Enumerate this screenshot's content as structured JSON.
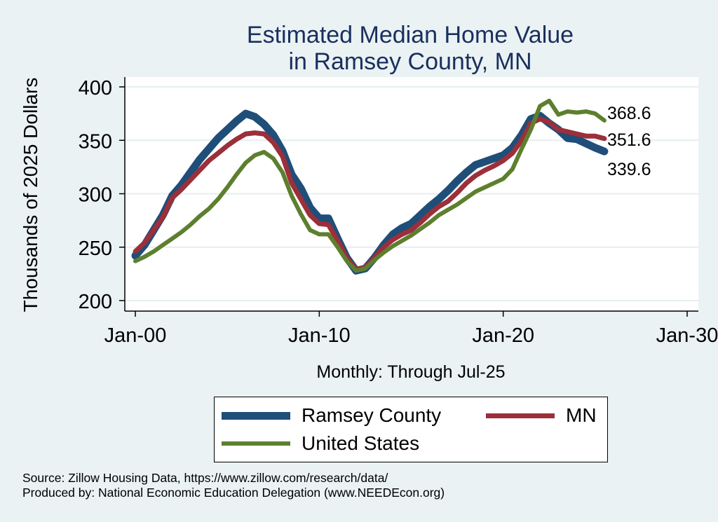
{
  "title_line1": "Estimated Median Home Value",
  "title_line2": "in Ramsey County, MN",
  "footer_line1": "Source: Zillow Housing Data, https://www.zillow.com/research/data/",
  "footer_line2": "Produced by: National Economic Education Delegation (www.NEEDEcon.org)",
  "chart_data": {
    "type": "line",
    "title": "Estimated Median Home Value in Ramsey County, MN",
    "xlabel": "Monthly: Through Jul-25",
    "ylabel": "Thousands of 2025 Dollars",
    "xlim": [
      "Jan-00",
      "Jan-30"
    ],
    "ylim": [
      200,
      400
    ],
    "x_ticks": [
      "Jan-00",
      "Jan-10",
      "Jan-20",
      "Jan-30"
    ],
    "y_ticks": [
      200,
      250,
      300,
      350,
      400
    ],
    "grid": true,
    "legend_position": "bottom",
    "series": [
      {
        "name": "Ramsey County",
        "color": "#1f4e79",
        "end_label": "339.6",
        "points": [
          [
            "Jan-00",
            242
          ],
          [
            "Jul-00",
            252
          ],
          [
            "Jan-01",
            266
          ],
          [
            "Jul-01",
            280
          ],
          [
            "Jan-02",
            298
          ],
          [
            "Jul-02",
            308
          ],
          [
            "Jan-03",
            320
          ],
          [
            "Jul-03",
            332
          ],
          [
            "Jan-04",
            342
          ],
          [
            "Jul-04",
            352
          ],
          [
            "Jan-05",
            360
          ],
          [
            "Jul-05",
            368
          ],
          [
            "Jan-06",
            375
          ],
          [
            "Jul-06",
            372
          ],
          [
            "Jan-07",
            365
          ],
          [
            "Jul-07",
            355
          ],
          [
            "Jan-08",
            340
          ],
          [
            "Jul-08",
            318
          ],
          [
            "Jan-09",
            305
          ],
          [
            "Jul-09",
            287
          ],
          [
            "Jan-10",
            277
          ],
          [
            "Jul-10",
            277
          ],
          [
            "Jan-11",
            258
          ],
          [
            "Jul-11",
            240
          ],
          [
            "Jan-12",
            228
          ],
          [
            "Jul-12",
            230
          ],
          [
            "Jan-13",
            240
          ],
          [
            "Jul-13",
            252
          ],
          [
            "Jan-14",
            262
          ],
          [
            "Jul-14",
            268
          ],
          [
            "Jan-15",
            272
          ],
          [
            "Jul-15",
            280
          ],
          [
            "Jan-16",
            288
          ],
          [
            "Jul-16",
            295
          ],
          [
            "Jan-17",
            303
          ],
          [
            "Jul-17",
            312
          ],
          [
            "Jan-18",
            320
          ],
          [
            "Jul-18",
            327
          ],
          [
            "Jan-19",
            330
          ],
          [
            "Jul-19",
            333
          ],
          [
            "Jan-20",
            336
          ],
          [
            "Jul-20",
            343
          ],
          [
            "Jan-21",
            355
          ],
          [
            "Jul-21",
            370
          ],
          [
            "Jan-22",
            373
          ],
          [
            "Jul-22",
            366
          ],
          [
            "Jan-23",
            360
          ],
          [
            "Jul-23",
            352
          ],
          [
            "Jan-24",
            351
          ],
          [
            "Jul-24",
            347
          ],
          [
            "Jan-25",
            343
          ],
          [
            "Jul-25",
            339.6
          ]
        ]
      },
      {
        "name": "MN",
        "color": "#9b2f3a",
        "end_label": "351.6",
        "points": [
          [
            "Jan-00",
            246
          ],
          [
            "Jul-00",
            254
          ],
          [
            "Jan-01",
            266
          ],
          [
            "Jul-01",
            278
          ],
          [
            "Jan-02",
            296
          ],
          [
            "Jul-02",
            304
          ],
          [
            "Jan-03",
            313
          ],
          [
            "Jul-03",
            322
          ],
          [
            "Jan-04",
            331
          ],
          [
            "Jul-04",
            338
          ],
          [
            "Jan-05",
            345
          ],
          [
            "Jul-05",
            351
          ],
          [
            "Jan-06",
            356
          ],
          [
            "Jul-06",
            357
          ],
          [
            "Jan-07",
            356
          ],
          [
            "Jul-07",
            348
          ],
          [
            "Jan-08",
            335
          ],
          [
            "Jul-08",
            310
          ],
          [
            "Jan-09",
            295
          ],
          [
            "Jul-09",
            280
          ],
          [
            "Jan-10",
            272
          ],
          [
            "Jul-10",
            271
          ],
          [
            "Jan-11",
            256
          ],
          [
            "Jul-11",
            240
          ],
          [
            "Jan-12",
            229
          ],
          [
            "Jul-12",
            231
          ],
          [
            "Jan-13",
            240
          ],
          [
            "Jul-13",
            250
          ],
          [
            "Jan-14",
            257
          ],
          [
            "Jul-14",
            262
          ],
          [
            "Jan-15",
            266
          ],
          [
            "Jul-15",
            273
          ],
          [
            "Jan-16",
            281
          ],
          [
            "Jul-16",
            288
          ],
          [
            "Jan-17",
            293
          ],
          [
            "Jul-17",
            301
          ],
          [
            "Jan-18",
            310
          ],
          [
            "Jul-18",
            317
          ],
          [
            "Jan-19",
            322
          ],
          [
            "Jul-19",
            326
          ],
          [
            "Jan-20",
            331
          ],
          [
            "Jul-20",
            338
          ],
          [
            "Jan-21",
            350
          ],
          [
            "Jul-21",
            366
          ],
          [
            "Jan-22",
            370
          ],
          [
            "Jul-22",
            367
          ],
          [
            "Jan-23",
            360
          ],
          [
            "Jul-23",
            358
          ],
          [
            "Jan-24",
            356
          ],
          [
            "Jul-24",
            354
          ],
          [
            "Jan-25",
            354
          ],
          [
            "Jul-25",
            351.6
          ]
        ]
      },
      {
        "name": "United States",
        "color": "#5d7f2e",
        "end_label": "368.6",
        "points": [
          [
            "Jan-00",
            237
          ],
          [
            "Jul-00",
            241
          ],
          [
            "Jan-01",
            246
          ],
          [
            "Jul-01",
            252
          ],
          [
            "Jan-02",
            258
          ],
          [
            "Jul-02",
            264
          ],
          [
            "Jan-03",
            271
          ],
          [
            "Jul-03",
            279
          ],
          [
            "Jan-04",
            286
          ],
          [
            "Jul-04",
            295
          ],
          [
            "Jan-05",
            306
          ],
          [
            "Jul-05",
            318
          ],
          [
            "Jan-06",
            329
          ],
          [
            "Jul-06",
            336
          ],
          [
            "Jan-07",
            339
          ],
          [
            "Jul-07",
            333
          ],
          [
            "Jan-08",
            320
          ],
          [
            "Jul-08",
            298
          ],
          [
            "Jan-09",
            281
          ],
          [
            "Jul-09",
            266
          ],
          [
            "Jan-10",
            262
          ],
          [
            "Jul-10",
            262
          ],
          [
            "Jan-11",
            250
          ],
          [
            "Jul-11",
            237
          ],
          [
            "Jan-12",
            228
          ],
          [
            "Jul-12",
            230
          ],
          [
            "Jan-13",
            238
          ],
          [
            "Jul-13",
            245
          ],
          [
            "Jan-14",
            251
          ],
          [
            "Jul-14",
            256
          ],
          [
            "Jan-15",
            261
          ],
          [
            "Jul-15",
            267
          ],
          [
            "Jan-16",
            273
          ],
          [
            "Jul-16",
            280
          ],
          [
            "Jan-17",
            285
          ],
          [
            "Jul-17",
            290
          ],
          [
            "Jan-18",
            296
          ],
          [
            "Jul-18",
            302
          ],
          [
            "Jan-19",
            306
          ],
          [
            "Jul-19",
            310
          ],
          [
            "Jan-20",
            314
          ],
          [
            "Jul-20",
            323
          ],
          [
            "Jan-21",
            342
          ],
          [
            "Jul-21",
            360
          ],
          [
            "Jan-22",
            382
          ],
          [
            "Jul-22",
            387
          ],
          [
            "Jan-23",
            374
          ],
          [
            "Jul-23",
            377
          ],
          [
            "Jan-24",
            376
          ],
          [
            "Jul-24",
            377
          ],
          [
            "Jan-25",
            375
          ],
          [
            "Jul-25",
            368.6
          ]
        ]
      }
    ]
  }
}
